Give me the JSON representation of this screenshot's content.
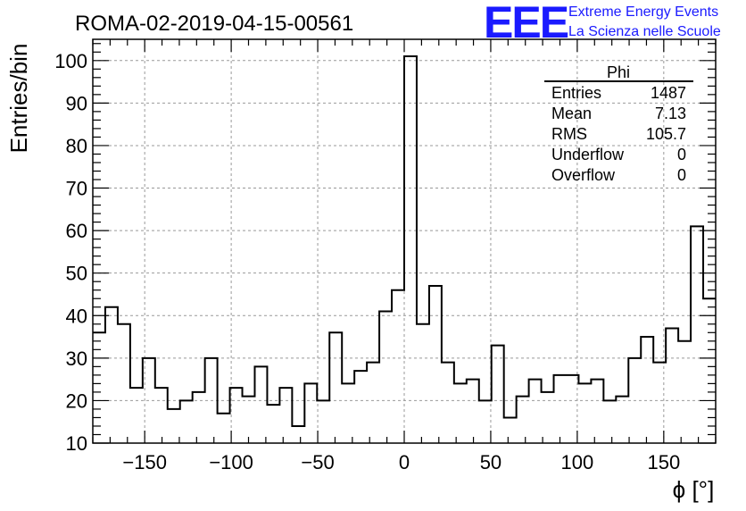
{
  "chart_data": {
    "type": "histogram",
    "title": "ROMA-02-2019-04-15-00561",
    "xlabel": "ϕ [°]",
    "ylabel": "Entries/bin",
    "xlim": [
      -180,
      180
    ],
    "ylim": [
      10,
      105
    ],
    "bin_width": 7.2,
    "x_ticks": [
      -150,
      -100,
      -50,
      0,
      50,
      100,
      150
    ],
    "x_tick_labels": [
      "−150",
      "−100",
      "−50",
      "0",
      "50",
      "100",
      "150"
    ],
    "y_ticks": [
      10,
      20,
      30,
      40,
      50,
      60,
      70,
      80,
      90,
      100
    ],
    "y_tick_labels": [
      "10",
      "20",
      "30",
      "40",
      "50",
      "60",
      "70",
      "80",
      "90",
      "100"
    ],
    "grid": true,
    "series": [
      {
        "values": [
          36,
          42,
          38,
          23,
          30,
          23,
          18,
          20,
          22,
          30,
          17,
          23,
          21,
          28,
          19,
          23,
          14,
          24,
          20,
          36,
          24,
          27,
          29,
          41,
          46,
          101,
          38,
          47,
          29,
          24,
          25,
          20,
          33,
          16,
          21,
          25,
          22,
          26,
          26,
          24,
          25,
          20,
          21,
          30,
          35,
          29,
          37,
          34,
          61,
          44
        ]
      }
    ],
    "stats_box": {
      "name": "Phi",
      "rows": [
        {
          "label": "Entries",
          "value": "1487"
        },
        {
          "label": "Mean",
          "value": "7.13"
        },
        {
          "label": "RMS",
          "value": "105.7"
        },
        {
          "label": "Underflow",
          "value": "0"
        },
        {
          "label": "Overflow",
          "value": "0"
        }
      ]
    }
  },
  "logo": {
    "mark": "EEE",
    "line1": "Extreme Energy Events",
    "line2": "La Scienza nelle Scuole"
  },
  "colors": {
    "logo": "#1a1aff",
    "line": "#000000",
    "grid": "#999999"
  }
}
